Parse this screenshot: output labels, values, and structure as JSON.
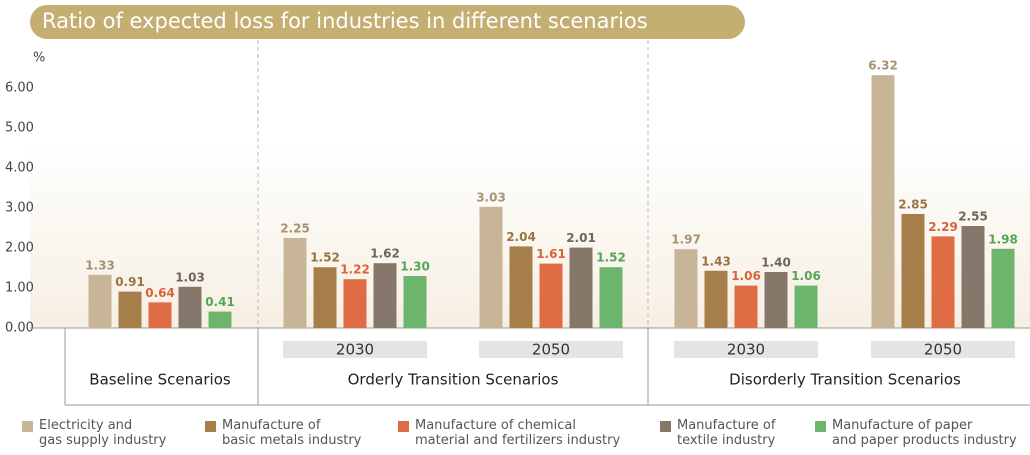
{
  "chart_data": {
    "type": "bar",
    "title": "Ratio of expected loss for industries in different scenarios",
    "y_unit": "%",
    "categories": [
      null,
      "2030",
      "2050",
      "2030",
      "2050"
    ],
    "scenario_groups": [
      "Baseline Scenarios",
      "Orderly Transition Scenarios",
      "Disorderly Transition Scenarios"
    ],
    "ylim": [
      0,
      6.5
    ],
    "yticks": [
      {
        "value": 0,
        "label": "0.00"
      },
      {
        "value": 1,
        "label": "1.00"
      },
      {
        "value": 2,
        "label": "2.00"
      },
      {
        "value": 3,
        "label": "3.00"
      },
      {
        "value": 4,
        "label": "4.00"
      },
      {
        "value": 5,
        "label": "5.00"
      },
      {
        "value": 6,
        "label": "6.00"
      }
    ],
    "series": [
      {
        "name": "Electricity and\ngas supply industry",
        "color": "#c8b597",
        "label_color": "#a8936f",
        "values": [
          1.33,
          2.25,
          3.03,
          1.97,
          6.32
        ],
        "value_labels": [
          "1.33",
          "2.25",
          "3.03",
          "1.97",
          "6.32"
        ]
      },
      {
        "name": "Manufacture of\nbasic metals industry",
        "color": "#a67e4a",
        "label_color": "#9a7440",
        "values": [
          0.91,
          1.52,
          2.04,
          1.43,
          2.85
        ],
        "value_labels": [
          "0.91",
          "1.52",
          "2.04",
          "1.43",
          "2.85"
        ]
      },
      {
        "name": "Manufacture of chemical\nmaterial and fertilizers industry",
        "color": "#e06c45",
        "label_color": "#d8633a",
        "values": [
          0.64,
          1.22,
          1.61,
          1.06,
          2.29
        ],
        "value_labels": [
          "0.64",
          "1.22",
          "1.61",
          "1.06",
          "2.29"
        ]
      },
      {
        "name": "Manufacture of\ntextile industry",
        "color": "#857769",
        "label_color": "#6f655a",
        "values": [
          1.03,
          1.62,
          2.01,
          1.4,
          2.55
        ],
        "value_labels": [
          "1.03",
          "1.62",
          "2.01",
          "1.40",
          "2.55"
        ]
      },
      {
        "name": "Manufacture of paper\nand paper products industry",
        "color": "#6db56c",
        "label_color": "#55a555",
        "values": [
          0.41,
          1.3,
          1.52,
          1.06,
          1.98
        ],
        "value_labels": [
          "0.41",
          "1.30",
          "1.52",
          "1.06",
          "1.98"
        ]
      }
    ]
  }
}
